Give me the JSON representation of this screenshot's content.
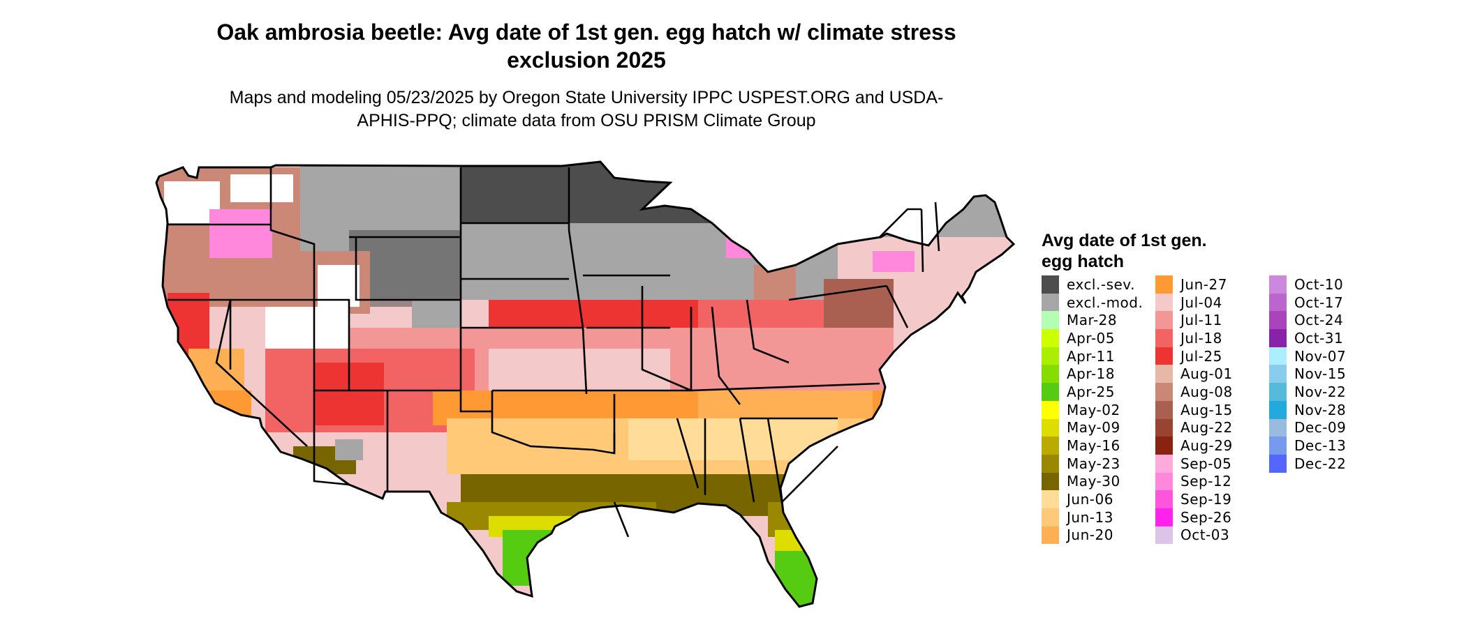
{
  "title": "Oak ambrosia beetle: Avg date of 1st gen. egg hatch w/ climate stress exclusion 2025",
  "subtitle": "Maps and modeling 05/23/2025 by Oregon State University IPPC USPEST.ORG and USDA-APHIS-PPQ; climate data from OSU PRISM Climate Group",
  "legend": {
    "title": "Avg date of 1st gen. egg hatch",
    "columns": [
      [
        {
          "label": "excl.-sev.",
          "color": "#4d4d4d"
        },
        {
          "label": "excl.-mod.",
          "color": "#a6a6a6"
        },
        {
          "label": "Mar-28",
          "color": "#b3ffb3"
        },
        {
          "label": "Apr-05",
          "color": "#ccff00"
        },
        {
          "label": "Apr-11",
          "color": "#aaee00"
        },
        {
          "label": "Apr-18",
          "color": "#88dd00"
        },
        {
          "label": "Apr-25",
          "color": "#55cc11"
        },
        {
          "label": "May-02",
          "color": "#ffff00"
        },
        {
          "label": "May-09",
          "color": "#dddd00"
        },
        {
          "label": "May-16",
          "color": "#bbaa00"
        },
        {
          "label": "May-23",
          "color": "#998800"
        },
        {
          "label": "May-30",
          "color": "#776600"
        },
        {
          "label": "Jun-06",
          "color": "#ffdd99"
        },
        {
          "label": "Jun-13",
          "color": "#ffc977"
        },
        {
          "label": "Jun-20",
          "color": "#ffb055"
        }
      ],
      [
        {
          "label": "Jun-27",
          "color": "#ff9933"
        },
        {
          "label": "Jul-04",
          "color": "#f4c9c9"
        },
        {
          "label": "Jul-11",
          "color": "#f39696"
        },
        {
          "label": "Jul-18",
          "color": "#f26464"
        },
        {
          "label": "Jul-25",
          "color": "#ee3333"
        },
        {
          "label": "Aug-01",
          "color": "#e6b8a8"
        },
        {
          "label": "Aug-08",
          "color": "#cc8877"
        },
        {
          "label": "Aug-15",
          "color": "#aa6050"
        },
        {
          "label": "Aug-22",
          "color": "#994433"
        },
        {
          "label": "Aug-29",
          "color": "#882211"
        },
        {
          "label": "Sep-05",
          "color": "#ffaadd"
        },
        {
          "label": "Sep-12",
          "color": "#ff88dd"
        },
        {
          "label": "Sep-19",
          "color": "#ff55dd"
        },
        {
          "label": "Sep-26",
          "color": "#ff22ee"
        },
        {
          "label": "Oct-03",
          "color": "#dcc3e8"
        }
      ],
      [
        {
          "label": "Oct-10",
          "color": "#cc88dd"
        },
        {
          "label": "Oct-17",
          "color": "#bb66cc"
        },
        {
          "label": "Oct-24",
          "color": "#aa44bb"
        },
        {
          "label": "Oct-31",
          "color": "#8822aa"
        },
        {
          "label": "Nov-07",
          "color": "#aaeeff"
        },
        {
          "label": "Nov-15",
          "color": "#88ccee"
        },
        {
          "label": "Nov-22",
          "color": "#55bbdd"
        },
        {
          "label": "Nov-28",
          "color": "#22aadd"
        },
        {
          "label": "Dec-09",
          "color": "#99bbdd"
        },
        {
          "label": "Dec-13",
          "color": "#7799ee"
        },
        {
          "label": "Dec-22",
          "color": "#5566ff"
        }
      ]
    ]
  }
}
